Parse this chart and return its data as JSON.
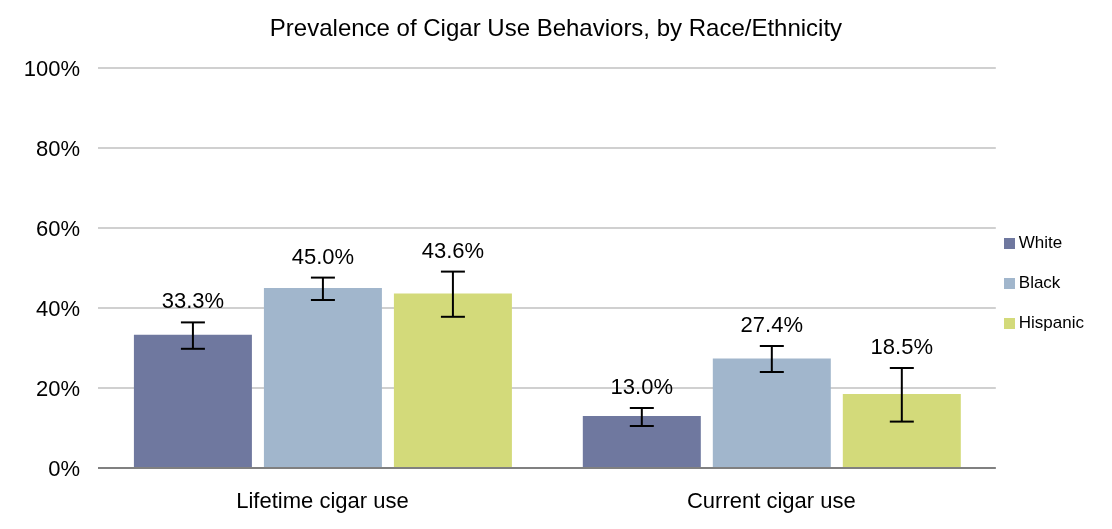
{
  "chart_data": {
    "type": "bar",
    "title": "Prevalence of Cigar Use Behaviors, by Race/Ethnicity",
    "categories": [
      "Lifetime cigar use",
      "Current cigar use"
    ],
    "series": [
      {
        "name": "White",
        "color": "#6f789f",
        "values": [
          33.3,
          13.0
        ],
        "errors": [
          [
            29.8,
            36.4
          ],
          [
            10.5,
            15.0
          ]
        ],
        "value_labels": [
          "33.3%",
          "13.0%"
        ]
      },
      {
        "name": "Black",
        "color": "#a1b6cc",
        "values": [
          45.0,
          27.4
        ],
        "errors": [
          [
            42.0,
            47.6
          ],
          [
            24.0,
            30.5
          ]
        ],
        "value_labels": [
          "45.0%",
          "27.4%"
        ]
      },
      {
        "name": "Hispanic",
        "color": "#d3da7a",
        "values": [
          43.6,
          18.5
        ],
        "errors": [
          [
            37.8,
            49.1
          ],
          [
            11.6,
            25.0
          ]
        ],
        "value_labels": [
          "43.6%",
          "18.5%"
        ]
      }
    ],
    "ylim": [
      0,
      100
    ],
    "yticks": [
      {
        "value": 0,
        "label": "0%"
      },
      {
        "value": 20,
        "label": "20%"
      },
      {
        "value": 40,
        "label": "40%"
      },
      {
        "value": 60,
        "label": "60%"
      },
      {
        "value": 80,
        "label": "80%"
      },
      {
        "value": 100,
        "label": "100%"
      }
    ],
    "grid": "y",
    "legend": "right"
  }
}
